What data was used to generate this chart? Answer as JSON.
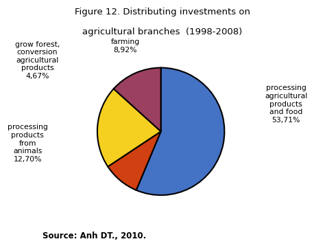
{
  "title_line1": "Figure 12. Distributing investments on",
  "title_line2": "agricultural branches  (1998-2008)",
  "source": "Source: Anh DT., 2010.",
  "pie_sizes": [
    53.71,
    8.92,
    20.0,
    12.7
  ],
  "pie_colors": [
    "#4472C4",
    "#D04010",
    "#F5D020",
    "#9B4060"
  ],
  "start_angle": 90,
  "label_grow_forest": "grow forest,\nconversion\nagricultural\nproducts\n4,67%",
  "label_animals": "processing\nproducts\nfrom\nanimals\n12,70%",
  "label_farming": "farming\n8,92%",
  "label_processing": "processing\nagricultural\nproducts\nand food\n53,71%",
  "bg_color": "#ffffff",
  "pie_bg_color": "#c8c8c8",
  "edge_color": "#000000",
  "edge_lw": 1.5
}
